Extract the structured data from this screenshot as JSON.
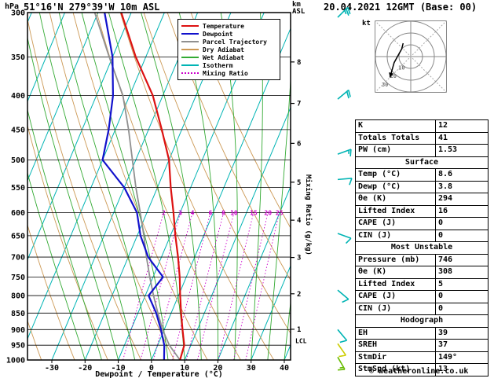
{
  "header": {
    "pressure_unit": "hPa",
    "station": "51°16'N 279°39'W 10m ASL",
    "datetime": "20.04.2021 12GMT (Base: 00)",
    "km_label": "km",
    "asl_label": "ASL"
  },
  "legend": [
    {
      "label": "Temperature",
      "color": "#dd1111",
      "dash": false
    },
    {
      "label": "Dewpoint",
      "color": "#1111cc",
      "dash": false
    },
    {
      "label": "Parcel Trajectory",
      "color": "#909090",
      "dash": false
    },
    {
      "label": "Dry Adiabat",
      "color": "#cc9955",
      "dash": false
    },
    {
      "label": "Wet Adiabat",
      "color": "#33aa33",
      "dash": false
    },
    {
      "label": "Isotherm",
      "color": "#00b4b4",
      "dash": false
    },
    {
      "label": "Mixing Ratio",
      "color": "#cc00cc",
      "dash": true
    }
  ],
  "axes": {
    "pressure_ticks": [
      300,
      350,
      400,
      450,
      500,
      550,
      600,
      650,
      700,
      750,
      800,
      850,
      900,
      950,
      1000
    ],
    "temp_ticks": [
      -30,
      -20,
      -10,
      0,
      10,
      20,
      30,
      40
    ],
    "xlabel": "Dewpoint / Temperature (°C)",
    "mixing_label": "Mixing Ratio (g/kg)",
    "mixing_values": [
      2,
      3,
      4,
      6,
      8,
      10,
      15,
      20,
      25
    ],
    "km_ticks": [
      {
        "km": 1,
        "p": 899
      },
      {
        "km": 2,
        "p": 795
      },
      {
        "km": 3,
        "p": 701
      },
      {
        "km": 4,
        "p": 616
      },
      {
        "km": 5,
        "p": 540
      },
      {
        "km": 6,
        "p": 472
      },
      {
        "km": 7,
        "p": 411
      },
      {
        "km": 8,
        "p": 356
      }
    ],
    "lcl": {
      "label": "LCL",
      "pressure": 935
    }
  },
  "chart_data": {
    "type": "skewt-log-p-sounding",
    "title": "51°16'N 279°39'W 10m ASL  20.04.2021 12GMT (Base: 00)",
    "x_range_C": [
      -30,
      40
    ],
    "p_range_hPa": [
      300,
      1000
    ],
    "pressure_hPa": [
      1000,
      950,
      900,
      850,
      800,
      750,
      700,
      650,
      600,
      550,
      500,
      450,
      400,
      350,
      300
    ],
    "temperature_C": [
      8.6,
      8.0,
      5.5,
      3.0,
      0.5,
      -2.0,
      -5.0,
      -8.5,
      -12.0,
      -16.0,
      -20.0,
      -26.0,
      -33.0,
      -43.0,
      -53.0
    ],
    "dewpoint_C": [
      3.8,
      2.0,
      -1.0,
      -4.5,
      -9.0,
      -7.0,
      -14.0,
      -19.0,
      -23.0,
      -30.0,
      -40.0,
      -42.0,
      -45.0,
      -50.0,
      -58.0
    ],
    "parcel_C": [
      8.6,
      3.5,
      -0.5,
      -4.0,
      -7.5,
      -11.0,
      -14.5,
      -18.0,
      -22.0,
      -26.5,
      -31.0,
      -36.0,
      -42.0,
      -51.0,
      -61.0
    ],
    "winds": [
      {
        "p": 305,
        "dir": 45,
        "spd": 25,
        "color": "#00b4b4"
      },
      {
        "p": 405,
        "dir": 50,
        "spd": 20,
        "color": "#00b4b4"
      },
      {
        "p": 490,
        "dir": 70,
        "spd": 15,
        "color": "#00b4b4"
      },
      {
        "p": 535,
        "dir": 85,
        "spd": 10,
        "color": "#00b4b4"
      },
      {
        "p": 645,
        "dir": 110,
        "spd": 10,
        "color": "#00b4b4"
      },
      {
        "p": 785,
        "dir": 130,
        "spd": 10,
        "color": "#00b4b4"
      },
      {
        "p": 900,
        "dir": 140,
        "spd": 10,
        "color": "#00b4b4"
      },
      {
        "p": 945,
        "dir": 145,
        "spd": 12,
        "color": "#cccc00"
      },
      {
        "p": 990,
        "dir": 150,
        "spd": 13,
        "color": "#66bb00"
      }
    ]
  },
  "hodograph": {
    "kt_label": "kt",
    "rings_kt": [
      10,
      20,
      30
    ],
    "trace_uv_kt": [
      [
        -6.5,
        11.3
      ],
      [
        -7.7,
        6.4
      ],
      [
        -9.4,
        3.4
      ],
      [
        -14.1,
        -5.1
      ],
      [
        -17.7,
        -17.7
      ]
    ]
  },
  "table": {
    "sections": [
      {
        "header": null,
        "rows": [
          [
            "K",
            "12"
          ],
          [
            "Totals Totals",
            "41"
          ],
          [
            "PW (cm)",
            "1.53"
          ]
        ]
      },
      {
        "header": "Surface",
        "rows": [
          [
            "Temp (°C)",
            "8.6"
          ],
          [
            "Dewp (°C)",
            "3.8"
          ],
          [
            "θe (K)",
            "294"
          ],
          [
            "Lifted Index",
            "16"
          ],
          [
            "CAPE (J)",
            "0"
          ],
          [
            "CIN (J)",
            "0"
          ]
        ]
      },
      {
        "header": "Most Unstable",
        "rows": [
          [
            "Pressure (mb)",
            "746"
          ],
          [
            "θe (K)",
            "308"
          ],
          [
            "Lifted Index",
            "5"
          ],
          [
            "CAPE (J)",
            "0"
          ],
          [
            "CIN (J)",
            "0"
          ]
        ]
      },
      {
        "header": "Hodograph",
        "rows": [
          [
            "EH",
            "39"
          ],
          [
            "SREH",
            "37"
          ],
          [
            "StmDir",
            "149°"
          ],
          [
            "StmSpd (kt)",
            "13"
          ]
        ]
      }
    ]
  },
  "footer": {
    "copyright": "© weatheronline.co.uk"
  },
  "colors": {
    "temperature": "#dd1111",
    "dewpoint": "#1111cc",
    "parcel": "#909090",
    "dry_adiabat": "#cc9955",
    "wet_adiabat": "#33aa33",
    "isotherm": "#00b4b4",
    "mixing_ratio": "#cc00cc",
    "grid": "#000000",
    "hodograph_grid": "#888888"
  }
}
